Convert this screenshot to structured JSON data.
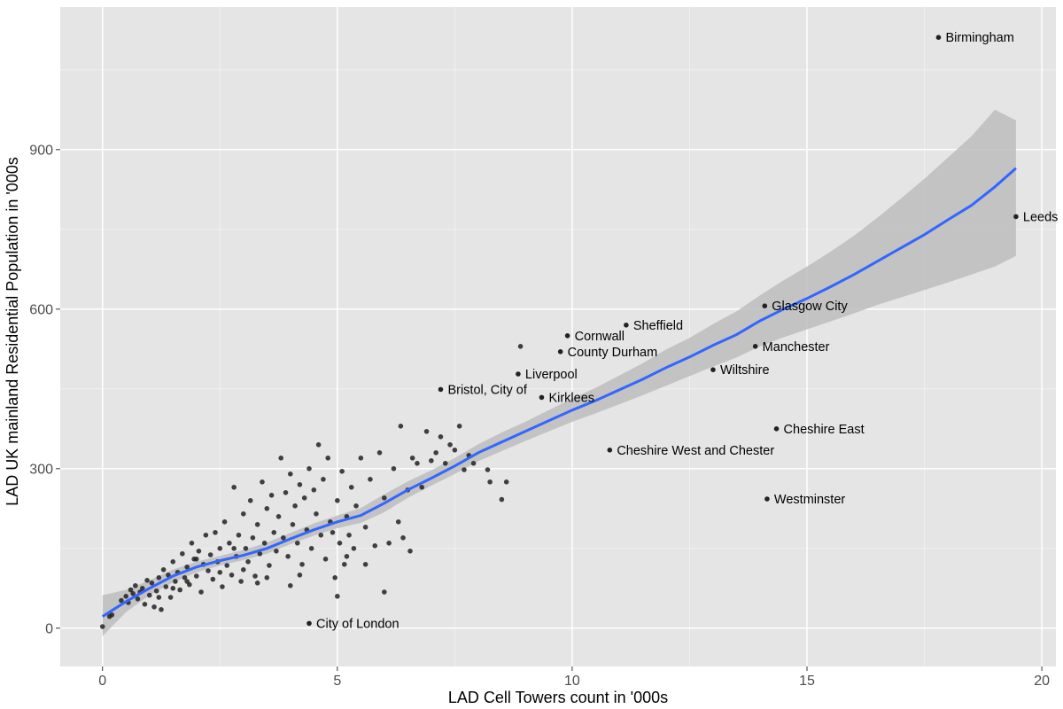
{
  "chart_data": {
    "type": "scatter",
    "title": "",
    "xlabel": "LAD Cell Towers count in '000s",
    "ylabel": "LAD UK mainland Residential Population in '000s",
    "xlim": [
      -0.9,
      20.3
    ],
    "ylim": [
      -72,
      1168
    ],
    "x_ticks": [
      0,
      5,
      10,
      15,
      20
    ],
    "y_ticks": [
      0,
      300,
      600,
      900
    ],
    "grid": true,
    "legend": "none",
    "colors": {
      "panel_bg": "#e5e5e5",
      "grid_major": "#ffffff",
      "point": "#222222",
      "smooth_line": "#3366ff",
      "ribbon": "#bdbdbd",
      "tick_text": "#4d4d4d"
    },
    "labeled_points": [
      {
        "label": "Birmingham",
        "x": 17.8,
        "y": 1111
      },
      {
        "label": "Leeds",
        "x": 19.45,
        "y": 774
      },
      {
        "label": "Glasgow City",
        "x": 14.1,
        "y": 606
      },
      {
        "label": "Sheffield",
        "x": 11.15,
        "y": 570
      },
      {
        "label": "Cornwall",
        "x": 9.9,
        "y": 550
      },
      {
        "label": "County Durham",
        "x": 9.75,
        "y": 520
      },
      {
        "label": "Manchester",
        "x": 13.9,
        "y": 530
      },
      {
        "label": "Wiltshire",
        "x": 13.0,
        "y": 486
      },
      {
        "label": "Liverpool",
        "x": 8.85,
        "y": 478
      },
      {
        "label": "Bristol, City of",
        "x": 7.2,
        "y": 449
      },
      {
        "label": "Kirklees",
        "x": 9.35,
        "y": 434
      },
      {
        "label": "Cheshire East",
        "x": 14.35,
        "y": 375
      },
      {
        "label": "Cheshire West and Chester",
        "x": 10.8,
        "y": 335
      },
      {
        "label": "Westminster",
        "x": 14.15,
        "y": 243
      },
      {
        "label": "City of London",
        "x": 4.4,
        "y": 9
      }
    ],
    "unlabeled_points": [
      [
        0,
        3
      ],
      [
        0.15,
        22
      ],
      [
        0.2,
        25
      ],
      [
        0.4,
        52
      ],
      [
        0.5,
        60
      ],
      [
        0.55,
        48
      ],
      [
        0.6,
        72
      ],
      [
        0.65,
        65
      ],
      [
        0.7,
        80
      ],
      [
        0.75,
        55
      ],
      [
        0.8,
        68
      ],
      [
        0.85,
        75
      ],
      [
        0.9,
        45
      ],
      [
        0.95,
        90
      ],
      [
        1.0,
        62
      ],
      [
        1.05,
        85
      ],
      [
        1.1,
        40
      ],
      [
        1.15,
        70
      ],
      [
        1.2,
        95
      ],
      [
        1.25,
        35
      ],
      [
        1.3,
        110
      ],
      [
        1.35,
        78
      ],
      [
        1.4,
        100
      ],
      [
        1.45,
        58
      ],
      [
        1.5,
        125
      ],
      [
        1.55,
        88
      ],
      [
        1.6,
        105
      ],
      [
        1.65,
        72
      ],
      [
        1.7,
        140
      ],
      [
        1.75,
        95
      ],
      [
        1.8,
        115
      ],
      [
        1.85,
        82
      ],
      [
        1.9,
        160
      ],
      [
        1.95,
        130
      ],
      [
        2.0,
        98
      ],
      [
        2.05,
        145
      ],
      [
        2.1,
        68
      ],
      [
        2.15,
        120
      ],
      [
        2.2,
        175
      ],
      [
        2.25,
        108
      ],
      [
        2.3,
        138
      ],
      [
        2.35,
        92
      ],
      [
        2.4,
        180
      ],
      [
        2.45,
        125
      ],
      [
        2.5,
        150
      ],
      [
        2.55,
        78
      ],
      [
        2.6,
        200
      ],
      [
        2.65,
        118
      ],
      [
        2.7,
        160
      ],
      [
        2.75,
        100
      ],
      [
        2.8,
        265
      ],
      [
        2.85,
        135
      ],
      [
        2.9,
        175
      ],
      [
        2.95,
        88
      ],
      [
        3.0,
        215
      ],
      [
        3.05,
        150
      ],
      [
        3.1,
        125
      ],
      [
        3.15,
        240
      ],
      [
        3.2,
        170
      ],
      [
        3.25,
        98
      ],
      [
        3.3,
        195
      ],
      [
        3.35,
        140
      ],
      [
        3.4,
        275
      ],
      [
        3.45,
        160
      ],
      [
        3.5,
        225
      ],
      [
        3.55,
        118
      ],
      [
        3.6,
        250
      ],
      [
        3.65,
        180
      ],
      [
        3.7,
        145
      ],
      [
        3.75,
        210
      ],
      [
        3.8,
        320
      ],
      [
        3.85,
        170
      ],
      [
        3.9,
        255
      ],
      [
        3.95,
        135
      ],
      [
        4.0,
        290
      ],
      [
        4.05,
        195
      ],
      [
        4.1,
        230
      ],
      [
        4.15,
        160
      ],
      [
        4.2,
        270
      ],
      [
        4.25,
        120
      ],
      [
        4.3,
        245
      ],
      [
        4.35,
        185
      ],
      [
        4.4,
        300
      ],
      [
        4.45,
        150
      ],
      [
        4.5,
        260
      ],
      [
        4.55,
        215
      ],
      [
        4.6,
        345
      ],
      [
        4.65,
        175
      ],
      [
        4.7,
        280
      ],
      [
        4.75,
        130
      ],
      [
        4.8,
        320
      ],
      [
        4.85,
        200
      ],
      [
        4.9,
        180
      ],
      [
        4.95,
        95
      ],
      [
        5.0,
        240
      ],
      [
        5.05,
        160
      ],
      [
        5.1,
        295
      ],
      [
        5.15,
        120
      ],
      [
        5.2,
        210
      ],
      [
        5.25,
        175
      ],
      [
        5.3,
        265
      ],
      [
        5.35,
        150
      ],
      [
        5.4,
        230
      ],
      [
        5.5,
        320
      ],
      [
        5.6,
        190
      ],
      [
        5.7,
        280
      ],
      [
        5.8,
        155
      ],
      [
        5.9,
        330
      ],
      [
        6.0,
        245
      ],
      [
        6.1,
        160
      ],
      [
        6.2,
        300
      ],
      [
        6.3,
        200
      ],
      [
        6.35,
        380
      ],
      [
        6.4,
        170
      ],
      [
        6.5,
        260
      ],
      [
        6.55,
        145
      ],
      [
        6.6,
        320
      ],
      [
        6.7,
        310
      ],
      [
        6.8,
        265
      ],
      [
        6.9,
        370
      ],
      [
        7.0,
        315
      ],
      [
        7.1,
        330
      ],
      [
        7.2,
        360
      ],
      [
        7.3,
        310
      ],
      [
        7.4,
        345
      ],
      [
        7.5,
        335
      ],
      [
        7.6,
        380
      ],
      [
        7.7,
        298
      ],
      [
        7.8,
        325
      ],
      [
        7.9,
        310
      ],
      [
        8.2,
        298
      ],
      [
        8.25,
        275
      ],
      [
        8.5,
        242
      ],
      [
        8.6,
        275
      ],
      [
        8.9,
        530
      ],
      [
        5.0,
        60
      ],
      [
        5.2,
        135
      ],
      [
        5.6,
        120
      ],
      [
        6.0,
        68
      ],
      [
        4.0,
        80
      ],
      [
        3.5,
        95
      ],
      [
        2.0,
        130
      ],
      [
        1.8,
        88
      ],
      [
        2.5,
        105
      ],
      [
        3.0,
        110
      ],
      [
        1.5,
        75
      ],
      [
        1.2,
        58
      ],
      [
        2.8,
        150
      ],
      [
        3.3,
        85
      ],
      [
        4.2,
        100
      ]
    ],
    "smooth_fit": {
      "x": [
        0,
        0.5,
        1,
        1.5,
        2,
        2.5,
        3,
        3.5,
        4,
        4.5,
        5,
        5.5,
        6,
        6.5,
        7,
        7.5,
        8,
        8.5,
        9,
        9.5,
        10,
        10.5,
        11,
        11.5,
        12,
        12.5,
        13,
        13.5,
        14,
        14.5,
        15,
        15.5,
        16,
        16.5,
        17,
        17.5,
        18,
        18.5,
        19,
        19.45
      ],
      "y": [
        22,
        50,
        75,
        98,
        115,
        127,
        137,
        150,
        168,
        185,
        200,
        212,
        235,
        260,
        282,
        305,
        330,
        350,
        370,
        390,
        410,
        428,
        448,
        468,
        490,
        510,
        532,
        552,
        578,
        600,
        620,
        642,
        665,
        690,
        715,
        740,
        768,
        795,
        830,
        865
      ],
      "ci_low": [
        -15,
        30,
        62,
        86,
        105,
        118,
        128,
        140,
        158,
        174,
        188,
        198,
        218,
        245,
        268,
        290,
        314,
        333,
        352,
        370,
        388,
        404,
        421,
        438,
        456,
        474,
        492,
        509,
        530,
        547,
        562,
        577,
        592,
        608,
        622,
        636,
        650,
        665,
        680,
        700
      ],
      "ci_high": [
        62,
        72,
        90,
        110,
        125,
        136,
        147,
        161,
        179,
        197,
        212,
        226,
        252,
        276,
        297,
        320,
        346,
        368,
        388,
        410,
        432,
        452,
        475,
        498,
        524,
        546,
        572,
        596,
        626,
        654,
        680,
        708,
        738,
        772,
        808,
        845,
        885,
        925,
        975,
        955
      ]
    }
  }
}
